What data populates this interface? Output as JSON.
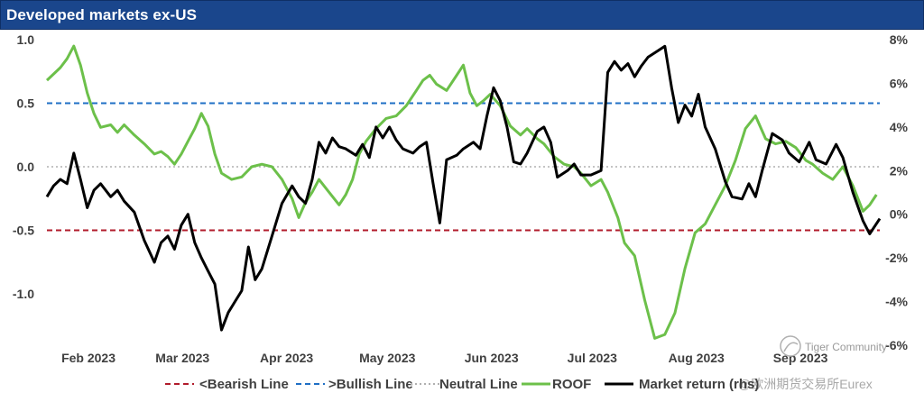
{
  "header": {
    "title": "Developed markets ex-US"
  },
  "colors": {
    "bearish": "#b11b2b",
    "bullish": "#1f6fc5",
    "neutral": "#b0b0b0",
    "roof": "#6cc04a",
    "market": "#000000"
  },
  "watermark": {
    "text1": "Tiger Community",
    "text2": "@欧洲期货交易所Eurex"
  },
  "chart_data": {
    "type": "line",
    "title": "Developed markets ex-US",
    "x_range": [
      "2023-01-25",
      "2023-09-30"
    ],
    "x_ticks": [
      {
        "label": "Feb 2023",
        "date": "2023-02-01"
      },
      {
        "label": "Mar 2023",
        "date": "2023-03-01"
      },
      {
        "label": "Apr 2023",
        "date": "2023-04-01"
      },
      {
        "label": "May 2023",
        "date": "2023-05-01"
      },
      {
        "label": "Jun 2023",
        "date": "2023-06-01"
      },
      {
        "label": "Jul 2023",
        "date": "2023-07-01"
      },
      {
        "label": "Aug 2023",
        "date": "2023-08-01"
      },
      {
        "label": "Sep 2023",
        "date": "2023-09-01"
      }
    ],
    "y_left": {
      "range": [
        -1.4,
        1.0
      ],
      "ticks": [
        "1.0",
        "0.5",
        "0.0",
        "-0.5",
        "-1.0"
      ],
      "tick_values": [
        1.0,
        0.5,
        0.0,
        -0.5,
        -1.0
      ]
    },
    "y_right": {
      "range": [
        -6,
        8
      ],
      "ticks": [
        "8%",
        "6%",
        "4%",
        "2%",
        "0%",
        "-2%",
        "-4%",
        "-6%"
      ],
      "tick_values": [
        8,
        6,
        4,
        2,
        0,
        -2,
        -4,
        -6
      ]
    },
    "grid": false,
    "legend_position": "bottom",
    "reference_lines": [
      {
        "name": "<Bearish Line",
        "value": -0.5,
        "axis": "left",
        "style": "dashed"
      },
      {
        "name": ">Bullish Line",
        "value": 0.5,
        "axis": "left",
        "style": "dashed"
      },
      {
        "name": "Neutral Line",
        "value": 0.0,
        "axis": "left",
        "style": "dotted"
      }
    ],
    "series": [
      {
        "name": "ROOF",
        "axis": "left",
        "points": [
          [
            "2023-01-25",
            0.68
          ],
          [
            "2023-01-27",
            0.73
          ],
          [
            "2023-01-29",
            0.78
          ],
          [
            "2023-01-31",
            0.85
          ],
          [
            "2023-02-02",
            0.95
          ],
          [
            "2023-02-04",
            0.8
          ],
          [
            "2023-02-06",
            0.58
          ],
          [
            "2023-02-08",
            0.42
          ],
          [
            "2023-02-10",
            0.31
          ],
          [
            "2023-02-13",
            0.33
          ],
          [
            "2023-02-15",
            0.27
          ],
          [
            "2023-02-17",
            0.33
          ],
          [
            "2023-02-20",
            0.25
          ],
          [
            "2023-02-23",
            0.18
          ],
          [
            "2023-02-26",
            0.1
          ],
          [
            "2023-02-28",
            0.12
          ],
          [
            "2023-03-02",
            0.08
          ],
          [
            "2023-03-04",
            0.02
          ],
          [
            "2023-03-06",
            0.1
          ],
          [
            "2023-03-08",
            0.2
          ],
          [
            "2023-03-10",
            0.3
          ],
          [
            "2023-03-12",
            0.42
          ],
          [
            "2023-03-14",
            0.32
          ],
          [
            "2023-03-16",
            0.1
          ],
          [
            "2023-03-18",
            -0.05
          ],
          [
            "2023-03-21",
            -0.1
          ],
          [
            "2023-03-24",
            -0.08
          ],
          [
            "2023-03-27",
            0.0
          ],
          [
            "2023-03-30",
            0.02
          ],
          [
            "2023-04-02",
            0.0
          ],
          [
            "2023-04-05",
            -0.1
          ],
          [
            "2023-04-08",
            -0.25
          ],
          [
            "2023-04-10",
            -0.4
          ],
          [
            "2023-04-12",
            -0.28
          ],
          [
            "2023-04-14",
            -0.2
          ],
          [
            "2023-04-16",
            -0.1
          ],
          [
            "2023-04-19",
            -0.2
          ],
          [
            "2023-04-22",
            -0.3
          ],
          [
            "2023-04-24",
            -0.22
          ],
          [
            "2023-04-26",
            -0.1
          ],
          [
            "2023-04-28",
            0.1
          ],
          [
            "2023-04-30",
            0.2
          ],
          [
            "2023-05-03",
            0.3
          ],
          [
            "2023-05-06",
            0.38
          ],
          [
            "2023-05-09",
            0.4
          ],
          [
            "2023-05-12",
            0.48
          ],
          [
            "2023-05-15",
            0.6
          ],
          [
            "2023-05-17",
            0.68
          ],
          [
            "2023-05-19",
            0.72
          ],
          [
            "2023-05-21",
            0.65
          ],
          [
            "2023-05-24",
            0.6
          ],
          [
            "2023-05-27",
            0.72
          ],
          [
            "2023-05-29",
            0.8
          ],
          [
            "2023-05-31",
            0.58
          ],
          [
            "2023-06-02",
            0.48
          ],
          [
            "2023-06-04",
            0.52
          ],
          [
            "2023-06-06",
            0.57
          ],
          [
            "2023-06-09",
            0.48
          ],
          [
            "2023-06-12",
            0.32
          ],
          [
            "2023-06-15",
            0.25
          ],
          [
            "2023-06-17",
            0.3
          ],
          [
            "2023-06-20",
            0.22
          ],
          [
            "2023-06-22",
            0.18
          ],
          [
            "2023-06-25",
            0.08
          ],
          [
            "2023-06-28",
            0.02
          ],
          [
            "2023-07-01",
            0.0
          ],
          [
            "2023-07-03",
            -0.05
          ],
          [
            "2023-07-06",
            -0.15
          ],
          [
            "2023-07-09",
            -0.1
          ],
          [
            "2023-07-11",
            -0.2
          ],
          [
            "2023-07-14",
            -0.4
          ],
          [
            "2023-07-16",
            -0.6
          ],
          [
            "2023-07-19",
            -0.7
          ],
          [
            "2023-07-22",
            -1.05
          ],
          [
            "2023-07-25",
            -1.35
          ],
          [
            "2023-07-28",
            -1.32
          ],
          [
            "2023-07-31",
            -1.15
          ],
          [
            "2023-08-03",
            -0.8
          ],
          [
            "2023-08-06",
            -0.52
          ],
          [
            "2023-08-09",
            -0.45
          ],
          [
            "2023-08-12",
            -0.3
          ],
          [
            "2023-08-15",
            -0.15
          ],
          [
            "2023-08-18",
            0.05
          ],
          [
            "2023-08-21",
            0.3
          ],
          [
            "2023-08-24",
            0.4
          ],
          [
            "2023-08-27",
            0.22
          ],
          [
            "2023-08-30",
            0.18
          ],
          [
            "2023-09-02",
            0.2
          ],
          [
            "2023-09-05",
            0.15
          ],
          [
            "2023-09-08",
            0.05
          ],
          [
            "2023-09-10",
            0.02
          ],
          [
            "2023-09-13",
            -0.05
          ],
          [
            "2023-09-16",
            -0.1
          ],
          [
            "2023-09-19",
            0.0
          ],
          [
            "2023-09-22",
            -0.15
          ],
          [
            "2023-09-25",
            -0.35
          ],
          [
            "2023-09-27",
            -0.3
          ],
          [
            "2023-09-29",
            -0.22
          ]
        ]
      },
      {
        "name": "Market return (rhs)",
        "axis": "right",
        "points": [
          [
            "2023-01-25",
            0.8
          ],
          [
            "2023-01-27",
            1.3
          ],
          [
            "2023-01-29",
            1.6
          ],
          [
            "2023-01-31",
            1.4
          ],
          [
            "2023-02-02",
            2.8
          ],
          [
            "2023-02-04",
            1.6
          ],
          [
            "2023-02-06",
            0.3
          ],
          [
            "2023-02-08",
            1.1
          ],
          [
            "2023-02-10",
            1.4
          ],
          [
            "2023-02-13",
            0.8
          ],
          [
            "2023-02-15",
            1.1
          ],
          [
            "2023-02-17",
            0.6
          ],
          [
            "2023-02-20",
            0.1
          ],
          [
            "2023-02-23",
            -1.2
          ],
          [
            "2023-02-26",
            -2.2
          ],
          [
            "2023-02-28",
            -1.3
          ],
          [
            "2023-03-02",
            -1.0
          ],
          [
            "2023-03-04",
            -1.6
          ],
          [
            "2023-03-06",
            -0.5
          ],
          [
            "2023-03-08",
            0.0
          ],
          [
            "2023-03-10",
            -1.3
          ],
          [
            "2023-03-12",
            -2.0
          ],
          [
            "2023-03-14",
            -2.6
          ],
          [
            "2023-03-16",
            -3.2
          ],
          [
            "2023-03-18",
            -5.3
          ],
          [
            "2023-03-20",
            -4.5
          ],
          [
            "2023-03-22",
            -4.0
          ],
          [
            "2023-03-24",
            -3.5
          ],
          [
            "2023-03-26",
            -1.5
          ],
          [
            "2023-03-28",
            -3.0
          ],
          [
            "2023-03-30",
            -2.5
          ],
          [
            "2023-04-02",
            -1.0
          ],
          [
            "2023-04-05",
            0.5
          ],
          [
            "2023-04-08",
            1.3
          ],
          [
            "2023-04-10",
            0.8
          ],
          [
            "2023-04-12",
            0.5
          ],
          [
            "2023-04-14",
            1.6
          ],
          [
            "2023-04-16",
            3.3
          ],
          [
            "2023-04-18",
            2.8
          ],
          [
            "2023-04-20",
            3.5
          ],
          [
            "2023-04-22",
            3.1
          ],
          [
            "2023-04-24",
            3.0
          ],
          [
            "2023-04-27",
            2.7
          ],
          [
            "2023-04-29",
            3.2
          ],
          [
            "2023-05-01",
            2.6
          ],
          [
            "2023-05-03",
            4.0
          ],
          [
            "2023-05-05",
            3.5
          ],
          [
            "2023-05-07",
            4.0
          ],
          [
            "2023-05-09",
            3.4
          ],
          [
            "2023-05-11",
            3.0
          ],
          [
            "2023-05-14",
            2.8
          ],
          [
            "2023-05-16",
            3.1
          ],
          [
            "2023-05-18",
            3.3
          ],
          [
            "2023-05-20",
            1.4
          ],
          [
            "2023-05-22",
            -0.4
          ],
          [
            "2023-05-24",
            2.5
          ],
          [
            "2023-05-27",
            2.7
          ],
          [
            "2023-05-29",
            3.0
          ],
          [
            "2023-06-01",
            3.3
          ],
          [
            "2023-06-03",
            3.0
          ],
          [
            "2023-06-05",
            4.5
          ],
          [
            "2023-06-07",
            5.8
          ],
          [
            "2023-06-09",
            5.2
          ],
          [
            "2023-06-11",
            4.0
          ],
          [
            "2023-06-13",
            2.4
          ],
          [
            "2023-06-15",
            2.3
          ],
          [
            "2023-06-17",
            2.8
          ],
          [
            "2023-06-20",
            3.8
          ],
          [
            "2023-06-22",
            4.0
          ],
          [
            "2023-06-24",
            3.3
          ],
          [
            "2023-06-26",
            1.7
          ],
          [
            "2023-06-29",
            2.0
          ],
          [
            "2023-07-01",
            2.3
          ],
          [
            "2023-07-03",
            1.8
          ],
          [
            "2023-07-06",
            1.8
          ],
          [
            "2023-07-09",
            2.0
          ],
          [
            "2023-07-11",
            6.5
          ],
          [
            "2023-07-13",
            7.0
          ],
          [
            "2023-07-15",
            6.6
          ],
          [
            "2023-07-17",
            6.9
          ],
          [
            "2023-07-19",
            6.3
          ],
          [
            "2023-07-21",
            6.8
          ],
          [
            "2023-07-23",
            7.2
          ],
          [
            "2023-07-26",
            7.5
          ],
          [
            "2023-07-28",
            7.7
          ],
          [
            "2023-07-30",
            5.8
          ],
          [
            "2023-08-01",
            4.2
          ],
          [
            "2023-08-03",
            5.0
          ],
          [
            "2023-08-05",
            4.5
          ],
          [
            "2023-08-07",
            5.5
          ],
          [
            "2023-08-09",
            4.0
          ],
          [
            "2023-08-12",
            3.0
          ],
          [
            "2023-08-15",
            1.5
          ],
          [
            "2023-08-17",
            0.8
          ],
          [
            "2023-08-20",
            0.7
          ],
          [
            "2023-08-22",
            1.4
          ],
          [
            "2023-08-24",
            0.8
          ],
          [
            "2023-08-26",
            2.0
          ],
          [
            "2023-08-29",
            3.7
          ],
          [
            "2023-09-01",
            3.4
          ],
          [
            "2023-09-03",
            2.8
          ],
          [
            "2023-09-06",
            2.4
          ],
          [
            "2023-09-09",
            3.3
          ],
          [
            "2023-09-11",
            2.5
          ],
          [
            "2023-09-14",
            2.3
          ],
          [
            "2023-09-17",
            3.2
          ],
          [
            "2023-09-19",
            2.6
          ],
          [
            "2023-09-22",
            1.0
          ],
          [
            "2023-09-25",
            -0.3
          ],
          [
            "2023-09-27",
            -0.9
          ],
          [
            "2023-09-30",
            -0.2
          ]
        ]
      }
    ]
  },
  "legend": [
    {
      "label": "<Bearish Line"
    },
    {
      "label": ">Bullish Line"
    },
    {
      "label": "Neutral Line"
    },
    {
      "label": "ROOF"
    },
    {
      "label": "Market return (rhs)"
    }
  ]
}
